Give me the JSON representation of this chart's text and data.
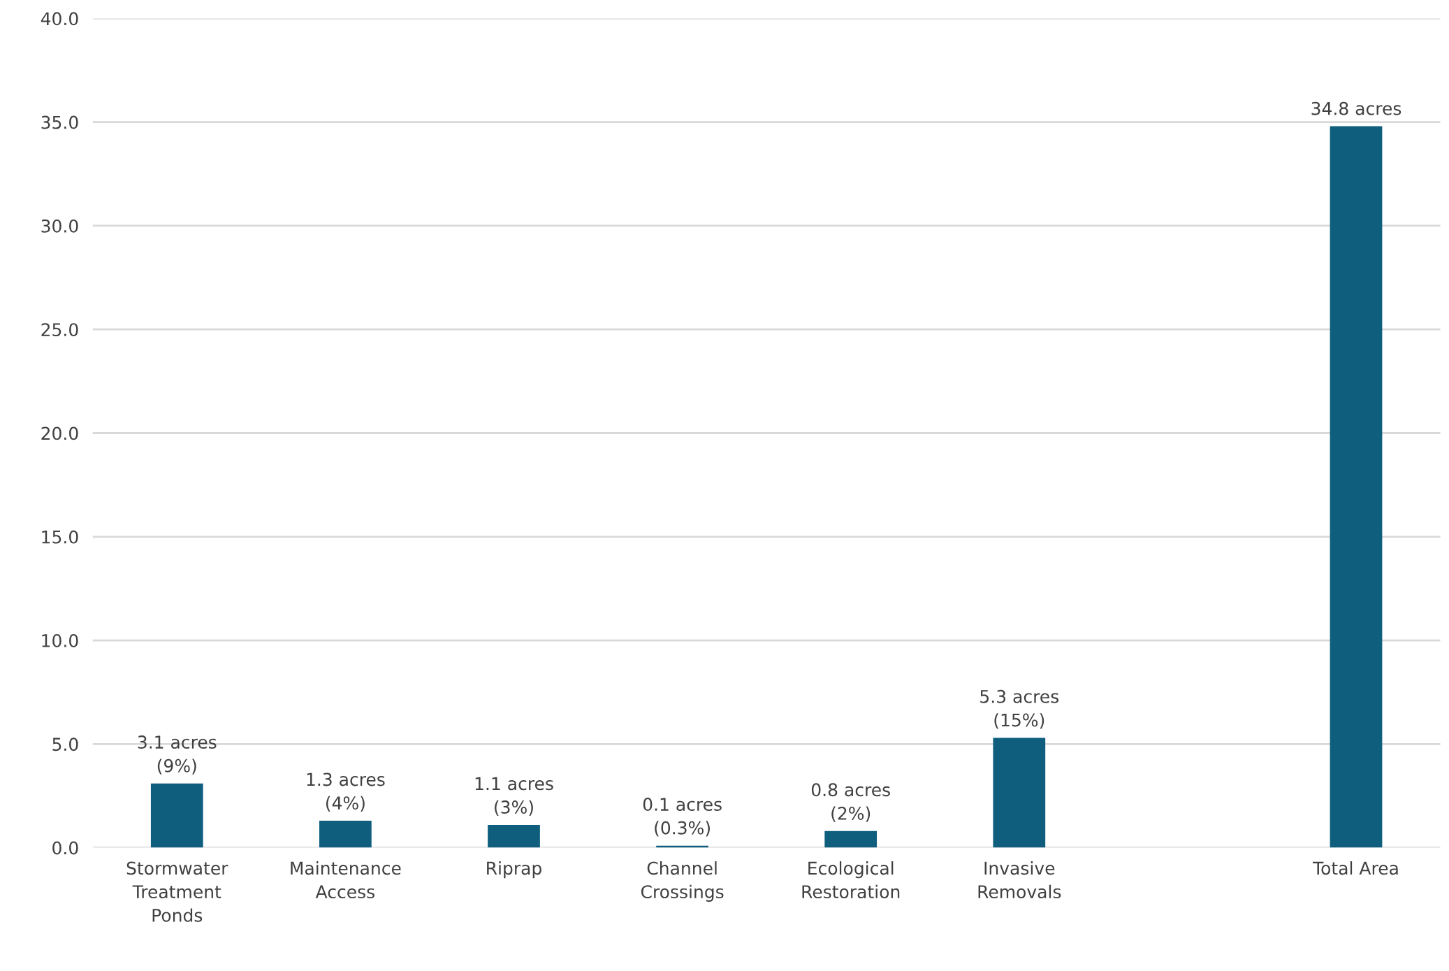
{
  "chart_data": {
    "type": "bar",
    "categories": [
      "Stormwater\nTreatment\nPonds",
      "Maintenance\nAccess",
      "Riprap",
      "Channel\nCrossings",
      "Ecological\nRestoration",
      "Invasive\nRemovals",
      null,
      "Total Area"
    ],
    "values": [
      3.1,
      1.3,
      1.1,
      0.1,
      0.8,
      5.3,
      null,
      34.8
    ],
    "value_labels": [
      "3.1 acres\n(9%)",
      "1.3 acres\n(4%)",
      "1.1 acres\n(3%)",
      "0.1 acres\n(0.3%)",
      "0.8 acres\n(2%)",
      "5.3 acres\n(15%)",
      null,
      "34.8 acres"
    ],
    "color": "#0f5e7e",
    "ylim": [
      0,
      40
    ],
    "yticks": [
      {
        "value": 0,
        "label": "0.0"
      },
      {
        "value": 5,
        "label": "5.0"
      },
      {
        "value": 10,
        "label": "10.0"
      },
      {
        "value": 15,
        "label": "15.0"
      },
      {
        "value": 20,
        "label": "20.0"
      },
      {
        "value": 25,
        "label": "25.0"
      },
      {
        "value": 30,
        "label": "30.0"
      },
      {
        "value": 35,
        "label": "35.0"
      },
      {
        "value": 40,
        "label": "40.0"
      }
    ],
    "grid": "y"
  }
}
